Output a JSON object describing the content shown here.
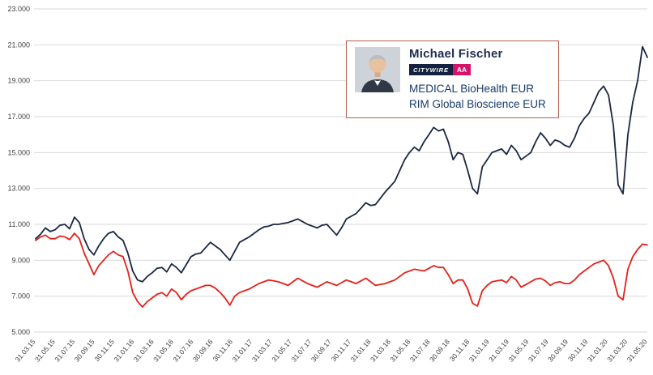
{
  "manager_card": {
    "name": "Michael Fischer",
    "citywire_label": "CITYWIRE",
    "rating": "AA",
    "funds": [
      "MEDICAL BioHealth EUR",
      "RIM Global Bioscience EUR"
    ],
    "border_color": "#b4604f",
    "badge_navy": "#13203f",
    "badge_pink": "#d4146a"
  },
  "chart_data": {
    "type": "line",
    "title": "",
    "xlabel": "",
    "ylabel": "",
    "grid": "horizontal",
    "grid_color": "#d9d9d9",
    "axis_text_color": "#404040",
    "legend_position": "floating-card",
    "ylim": [
      5000,
      23000
    ],
    "x_range_months": [
      0,
      62
    ],
    "y_ticks": [
      {
        "value": 23000,
        "label": "23.000"
      },
      {
        "value": 21000,
        "label": "21.000"
      },
      {
        "value": 19000,
        "label": "19.000"
      },
      {
        "value": 17000,
        "label": "17.000"
      },
      {
        "value": 15000,
        "label": "15.000"
      },
      {
        "value": 13000,
        "label": "13.000"
      },
      {
        "value": 11000,
        "label": "11.000"
      },
      {
        "value": 9000,
        "label": "9.000"
      },
      {
        "value": 7000,
        "label": "7.000"
      },
      {
        "value": 5000,
        "label": "5.000"
      }
    ],
    "x_ticks": [
      {
        "month": 0,
        "label": "31.03.15"
      },
      {
        "month": 2,
        "label": "31.05.15"
      },
      {
        "month": 4,
        "label": "31.07.15"
      },
      {
        "month": 6,
        "label": "30.09.15"
      },
      {
        "month": 8,
        "label": "30.11.15"
      },
      {
        "month": 10,
        "label": "31.01.16"
      },
      {
        "month": 12,
        "label": "31.03.16"
      },
      {
        "month": 14,
        "label": "31.05.16"
      },
      {
        "month": 16,
        "label": "31.07.16"
      },
      {
        "month": 18,
        "label": "30.09.16"
      },
      {
        "month": 20,
        "label": "30.11.16"
      },
      {
        "month": 22,
        "label": "31.01.17"
      },
      {
        "month": 24,
        "label": "31.03.17"
      },
      {
        "month": 26,
        "label": "31.05.17"
      },
      {
        "month": 28,
        "label": "31.07.17"
      },
      {
        "month": 30,
        "label": "30.09.17"
      },
      {
        "month": 32,
        "label": "30.11.17"
      },
      {
        "month": 34,
        "label": "31.01.18"
      },
      {
        "month": 36,
        "label": "31.03.18"
      },
      {
        "month": 38,
        "label": "31.05.18"
      },
      {
        "month": 40,
        "label": "31.07.18"
      },
      {
        "month": 42,
        "label": "30.09.18"
      },
      {
        "month": 44,
        "label": "30.11.18"
      },
      {
        "month": 46,
        "label": "31.01.19"
      },
      {
        "month": 48,
        "label": "31.03.19"
      },
      {
        "month": 50,
        "label": "31.05.19"
      },
      {
        "month": 52,
        "label": "31.07.19"
      },
      {
        "month": 54,
        "label": "30.09.19"
      },
      {
        "month": 56,
        "label": "30.11.19"
      },
      {
        "month": 58,
        "label": "31.01.20"
      },
      {
        "month": 60,
        "label": "31.03.20"
      },
      {
        "month": 62,
        "label": "31.05.20"
      }
    ],
    "series": [
      {
        "id": "medical",
        "name": "MEDICAL BioHealth EUR",
        "color": "#1a2742",
        "values": [
          10200,
          10450,
          10800,
          10600,
          10700,
          10950,
          11000,
          10750,
          11400,
          11100,
          10200,
          9600,
          9300,
          9800,
          10200,
          10500,
          10600,
          10300,
          10100,
          9400,
          8400,
          7900,
          7800,
          8100,
          8300,
          8550,
          8600,
          8350,
          8800,
          8600,
          8300,
          8750,
          9200,
          9350,
          9400,
          9700,
          10000,
          9800,
          9600,
          9300,
          9000,
          9500,
          10000,
          10150,
          10300,
          10500,
          10700,
          10850,
          10900,
          11000,
          11000,
          11050,
          11100,
          11200,
          11300,
          11150,
          11000,
          10900,
          10800,
          10950,
          11000,
          10700,
          10400,
          10800,
          11300,
          11450,
          11600,
          11900,
          12200,
          12050,
          12100,
          12450,
          12800,
          13100,
          13400,
          14000,
          14600,
          15000,
          15300,
          15100,
          15600,
          16000,
          16400,
          16200,
          16300,
          15600,
          14600,
          15000,
          14900,
          14000,
          13000,
          12700,
          14200,
          14600,
          15000,
          15100,
          15200,
          14900,
          15400,
          15100,
          14600,
          14800,
          15000,
          15600,
          16100,
          15800,
          15400,
          15700,
          15600,
          15400,
          15300,
          15800,
          16500,
          16900,
          17200,
          17800,
          18400,
          18700,
          18200,
          16500,
          13200,
          12700,
          16000,
          17800,
          19000,
          20900,
          20300
        ]
      },
      {
        "id": "rim",
        "name": "RIM Global Bioscience EUR",
        "color": "#e32119",
        "values": [
          10100,
          10300,
          10400,
          10200,
          10200,
          10350,
          10300,
          10150,
          10500,
          10200,
          9400,
          8800,
          8200,
          8700,
          9000,
          9300,
          9500,
          9300,
          9200,
          8400,
          7200,
          6700,
          6400,
          6700,
          6900,
          7100,
          7200,
          7000,
          7400,
          7200,
          6800,
          7100,
          7300,
          7400,
          7500,
          7600,
          7600,
          7450,
          7200,
          6900,
          6500,
          7000,
          7200,
          7300,
          7400,
          7550,
          7700,
          7800,
          7900,
          7850,
          7800,
          7700,
          7600,
          7800,
          8000,
          7850,
          7700,
          7600,
          7500,
          7650,
          7800,
          7700,
          7600,
          7750,
          7900,
          7800,
          7700,
          7850,
          8000,
          7800,
          7600,
          7650,
          7700,
          7800,
          7900,
          8100,
          8300,
          8400,
          8500,
          8450,
          8400,
          8550,
          8700,
          8600,
          8600,
          8200,
          7700,
          7900,
          7900,
          7400,
          6600,
          6450,
          7300,
          7600,
          7800,
          7850,
          7900,
          7750,
          8100,
          7900,
          7500,
          7650,
          7800,
          7950,
          8000,
          7850,
          7600,
          7750,
          7800,
          7700,
          7700,
          7900,
          8200,
          8400,
          8600,
          8800,
          8900,
          9000,
          8700,
          8000,
          7000,
          6800,
          8500,
          9200,
          9600,
          9900,
          9850
        ]
      }
    ]
  }
}
